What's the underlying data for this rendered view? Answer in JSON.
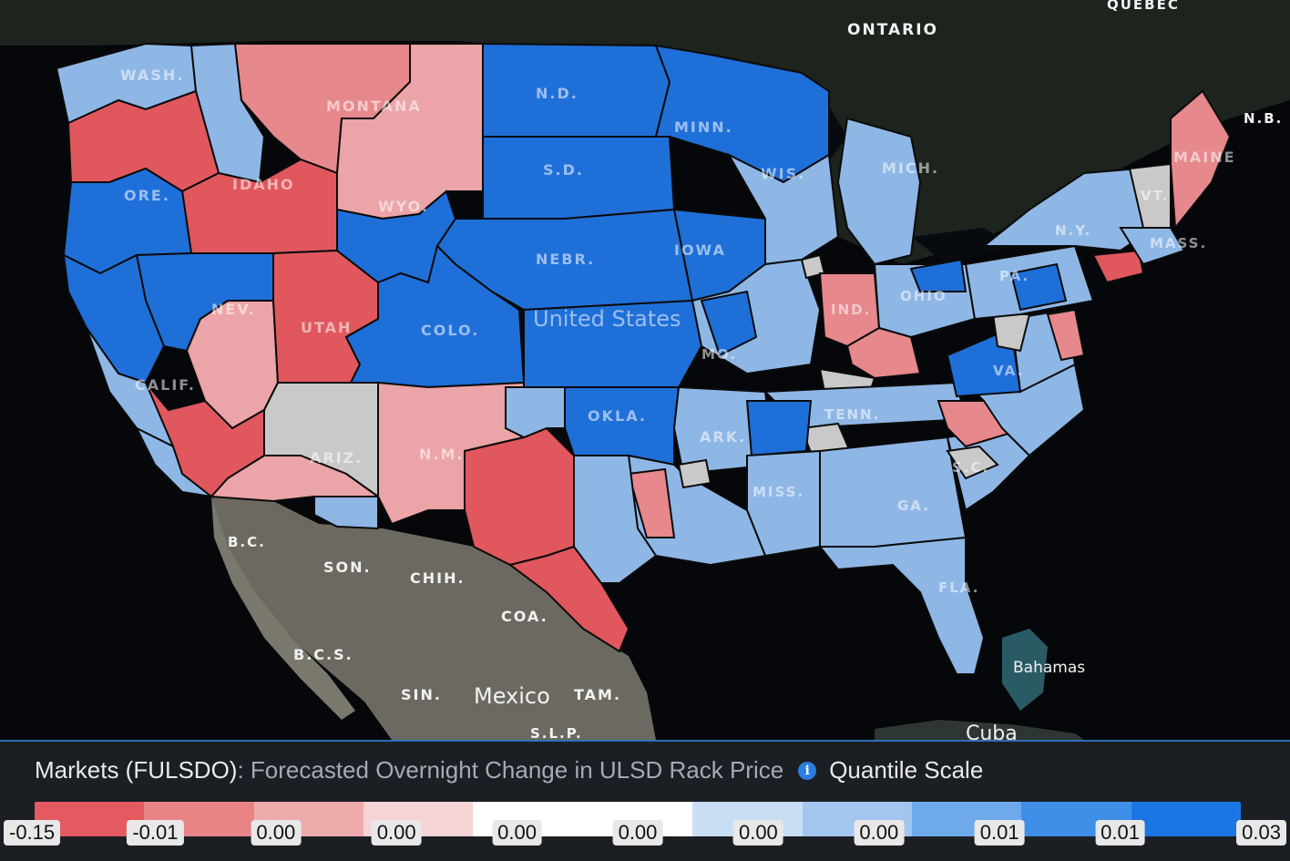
{
  "map": {
    "place_labels": [
      {
        "id": "ontario",
        "text": "ONTARIO"
      },
      {
        "id": "quebec",
        "text": "QUEBEC"
      },
      {
        "id": "nb",
        "text": "N.B."
      },
      {
        "id": "maine",
        "text": "MAINE"
      },
      {
        "id": "wash",
        "text": "WASH."
      },
      {
        "id": "montana",
        "text": "MONTANA"
      },
      {
        "id": "nd",
        "text": "N.D."
      },
      {
        "id": "minn",
        "text": "MINN."
      },
      {
        "id": "sd",
        "text": "S.D."
      },
      {
        "id": "wis",
        "text": "WIS."
      },
      {
        "id": "mich",
        "text": "MICH."
      },
      {
        "id": "ore",
        "text": "ORE."
      },
      {
        "id": "idaho",
        "text": "IDAHO"
      },
      {
        "id": "wyo",
        "text": "WYO."
      },
      {
        "id": "nebr",
        "text": "NEBR."
      },
      {
        "id": "iowa",
        "text": "IOWA"
      },
      {
        "id": "ny",
        "text": "N.Y."
      },
      {
        "id": "vt",
        "text": "VT."
      },
      {
        "id": "mass",
        "text": "MASS."
      },
      {
        "id": "nev",
        "text": "NEV."
      },
      {
        "id": "utah",
        "text": "UTAH"
      },
      {
        "id": "colo",
        "text": "COLO."
      },
      {
        "id": "us",
        "text": "United States"
      },
      {
        "id": "ind",
        "text": "IND."
      },
      {
        "id": "ohio",
        "text": "OHIO"
      },
      {
        "id": "pa",
        "text": "PA."
      },
      {
        "id": "calif",
        "text": "CALIF."
      },
      {
        "id": "mo",
        "text": "MO."
      },
      {
        "id": "va",
        "text": "VA."
      },
      {
        "id": "okla",
        "text": "OKLA."
      },
      {
        "id": "tenn",
        "text": "TENN."
      },
      {
        "id": "ark",
        "text": "ARK."
      },
      {
        "id": "ariz",
        "text": "ARIZ."
      },
      {
        "id": "nm",
        "text": "N.M."
      },
      {
        "id": "sc",
        "text": "S.C."
      },
      {
        "id": "miss",
        "text": "MISS."
      },
      {
        "id": "ga",
        "text": "GA."
      },
      {
        "id": "bc",
        "text": "B.C."
      },
      {
        "id": "son",
        "text": "SON."
      },
      {
        "id": "chih",
        "text": "CHIH."
      },
      {
        "id": "coa",
        "text": "COA."
      },
      {
        "id": "fla",
        "text": "FLA."
      },
      {
        "id": "bcs",
        "text": "B.C.S."
      },
      {
        "id": "bahamas",
        "text": "Bahamas"
      },
      {
        "id": "sin",
        "text": "SIN."
      },
      {
        "id": "mexico",
        "text": "Mexico"
      },
      {
        "id": "tam",
        "text": "TAM."
      },
      {
        "id": "slp",
        "text": "S.L.P."
      },
      {
        "id": "cuba",
        "text": "Cuba"
      }
    ]
  },
  "panel": {
    "title_strong": "Markets (FULSDO)",
    "title_rest": ": Forecasted Overnight Change in ULSD Rack Price",
    "scale_label": "Quantile Scale",
    "info_icon": "info-icon"
  },
  "legend": {
    "colors": [
      "#e35a60",
      "#e88386",
      "#efaaac",
      "#f6d3d4",
      "#ffffff",
      "#ffffff",
      "#c9def5",
      "#a3c6f0",
      "#6ea9ec",
      "#3f8fe9",
      "#1b76e3"
    ],
    "labels": [
      "-0.15",
      "-0.01",
      "0.00",
      "0.00",
      "0.00",
      "0.00",
      "0.00",
      "0.00",
      "0.01",
      "0.01",
      "0.03"
    ]
  },
  "colors": {
    "red": "#e0575e",
    "light_red": "#e6888c",
    "pink": "#eba4a7",
    "gray": "#c9c9c9",
    "light_blue": "#8fb7e6",
    "mid_blue": "#4e92e3",
    "blue": "#1f6fd8",
    "panel_border": "#2f6fb8"
  }
}
